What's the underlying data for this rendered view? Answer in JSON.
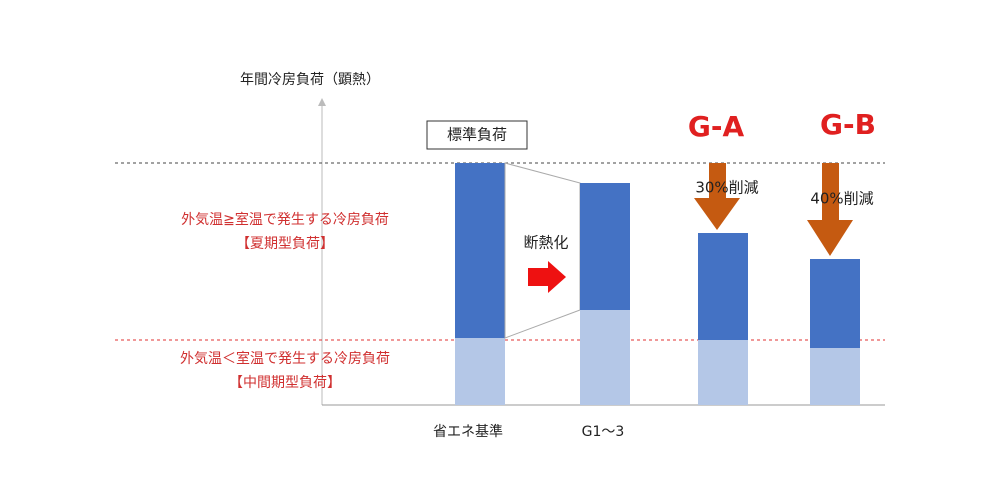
{
  "axis_title": "年間冷房負荷（顕熱）",
  "standard_label": "標準負荷",
  "summer": {
    "description": "外気温≧室温で発生する冷房負荷",
    "label": "【夏期型負荷】"
  },
  "intermediate": {
    "description": "外気温＜室温で発生する冷房負荷",
    "label": "【中間期型負荷】"
  },
  "insulation": "断熱化",
  "groups": [
    {
      "label": "省エネ基準"
    },
    {
      "label": "G1～3"
    },
    {
      "title": "G-A",
      "reduction": "30%削減"
    },
    {
      "title": "G-B",
      "reduction": "40%削減"
    }
  ]
}
